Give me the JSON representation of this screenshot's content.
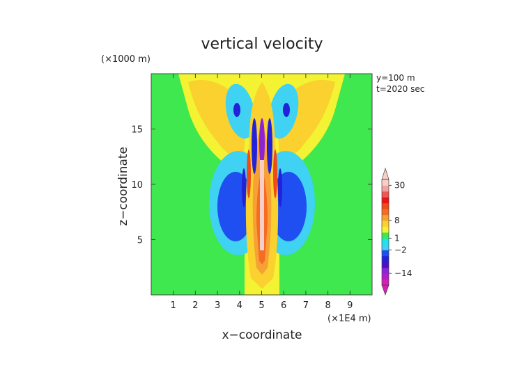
{
  "chart_data": {
    "type": "heatmap",
    "title": "vertical velocity",
    "xlabel": "x−coordinate",
    "ylabel": "z−coordinate",
    "x_unit": "(×1E4 m)",
    "y_unit": "(×1000 m)",
    "annotations": [
      "y=100 m",
      "t=2020 sec"
    ],
    "xlim": [
      0,
      10
    ],
    "ylim": [
      0,
      20
    ],
    "xticks": [
      1,
      2,
      3,
      4,
      5,
      6,
      7,
      8,
      9
    ],
    "yticks": [
      5,
      10,
      15
    ],
    "colorbar": {
      "levels": [
        -20,
        -17,
        -14,
        -11,
        -8,
        -5,
        -2,
        -1,
        1,
        2,
        5,
        8,
        11,
        14,
        17,
        20,
        25,
        30,
        35
      ],
      "tick_labels": [
        "30",
        "8",
        "1",
        "−2",
        "−14"
      ],
      "tick_values": [
        30,
        8,
        1,
        -2,
        -14
      ],
      "colors": [
        "#d81fb3",
        "#b01ecc",
        "#8c24d2",
        "#4b10c6",
        "#2222d8",
        "#1f4ff0",
        "#3fd2f2",
        "#22e1ea",
        "#3ee84e",
        "#f3f333",
        "#fad12f",
        "#f7a034",
        "#f56d22",
        "#f04a1a",
        "#ef1212",
        "#f25555",
        "#f4a0a0",
        "#f7cfc8"
      ]
    }
  }
}
